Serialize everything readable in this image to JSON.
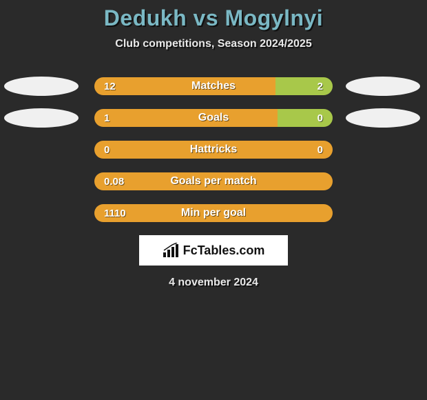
{
  "title": "Dedukh vs Mogylnyi",
  "subtitle": "Club competitions, Season 2024/2025",
  "date": "4 november 2024",
  "colors": {
    "left_bar": "#e8a02e",
    "right_bar": "#a8c84a",
    "oval": "#f0f0f0",
    "background": "#2a2a2a",
    "title_color": "#7ab8c4",
    "text_color": "#e8e8e8"
  },
  "logo": {
    "text": "FcTables.com"
  },
  "rows": [
    {
      "label": "Matches",
      "left_value": "12",
      "right_value": "2",
      "left_pct": 76,
      "right_pct": 24,
      "show_ovals": true
    },
    {
      "label": "Goals",
      "left_value": "1",
      "right_value": "0",
      "left_pct": 77,
      "right_pct": 23,
      "show_ovals": true
    },
    {
      "label": "Hattricks",
      "left_value": "0",
      "right_value": "0",
      "left_pct": 100,
      "right_pct": 0,
      "right_value_overlay": true,
      "show_ovals": false
    },
    {
      "label": "Goals per match",
      "left_value": "0.08",
      "right_value": "",
      "left_pct": 100,
      "right_pct": 0,
      "show_ovals": false
    },
    {
      "label": "Min per goal",
      "left_value": "1110",
      "right_value": "",
      "left_pct": 100,
      "right_pct": 0,
      "show_ovals": false
    }
  ]
}
